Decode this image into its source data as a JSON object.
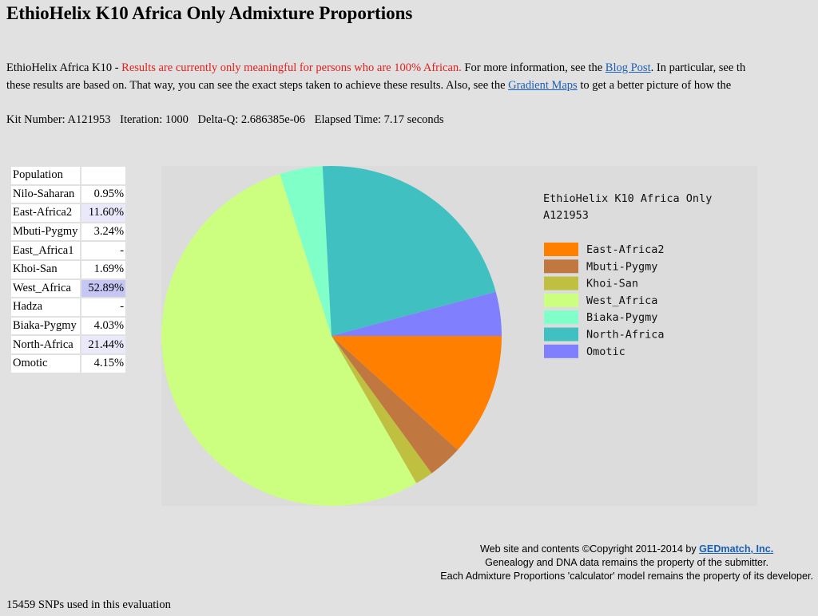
{
  "page": {
    "title": "EthioHelix K10 Africa Only Admixture Proportions"
  },
  "intro": {
    "prefix": "EthioHelix Africa K10 - ",
    "warning": "Results are currently only meaningful for persons who are 100% African.",
    "text1": " For more information, see the ",
    "blog_link": "Blog Post",
    "text2": ". In particular, see th",
    "line2_prefix": "these results are based on. That way, you can see the exact steps taken to achieve these results. Also, see the ",
    "gradient_link": "Gradient Maps",
    "line2_suffix": " to get a better picture of how the"
  },
  "kit": {
    "kit_number": "Kit Number: A121953",
    "iteration": "Iteration: 1000",
    "delta_q": "Delta-Q: 2.686385e-06",
    "elapsed": "Elapsed Time: 7.17 seconds"
  },
  "table": {
    "header": "Population",
    "rows": [
      {
        "name": "Nilo-Saharan",
        "value": "0.95%"
      },
      {
        "name": "East-Africa2",
        "value": "11.60%"
      },
      {
        "name": "Mbuti-Pygmy",
        "value": "3.24%"
      },
      {
        "name": "East_Africa1",
        "value": "-"
      },
      {
        "name": "Khoi-San",
        "value": "1.69%"
      },
      {
        "name": "West_Africa",
        "value": "52.89%"
      },
      {
        "name": "Hadza",
        "value": "-"
      },
      {
        "name": "Biaka-Pygmy",
        "value": "4.03%"
      },
      {
        "name": "North-Africa",
        "value": "21.44%"
      },
      {
        "name": "Omotic",
        "value": "4.15%"
      }
    ]
  },
  "chart_data": {
    "type": "pie",
    "title": "EthioHelix K10 Africa Only",
    "subtitle": "A121953",
    "legend_position": "right",
    "categories": [
      "East-Africa2",
      "Mbuti-Pygmy",
      "Khoi-San",
      "West_Africa",
      "Biaka-Pygmy",
      "North-Africa",
      "Omotic"
    ],
    "values": [
      11.6,
      3.24,
      1.69,
      52.89,
      4.03,
      21.44,
      4.15
    ],
    "colors": [
      "#ff8000",
      "#c07840",
      "#c0c040",
      "#ccff80",
      "#80ffc8",
      "#40c0c0",
      "#8080ff"
    ]
  },
  "footer": {
    "line1_prefix": "Web site and contents ©Copyright 2011-2014 by ",
    "gedmatch_link": "GEDmatch, Inc.",
    "line2": "Genealogy and DNA data remains the property of the submitter.",
    "line3": "Each Admixture Proportions 'calculator' model remains the property of its developer."
  },
  "snps": "15459 SNPs used in this evaluation"
}
